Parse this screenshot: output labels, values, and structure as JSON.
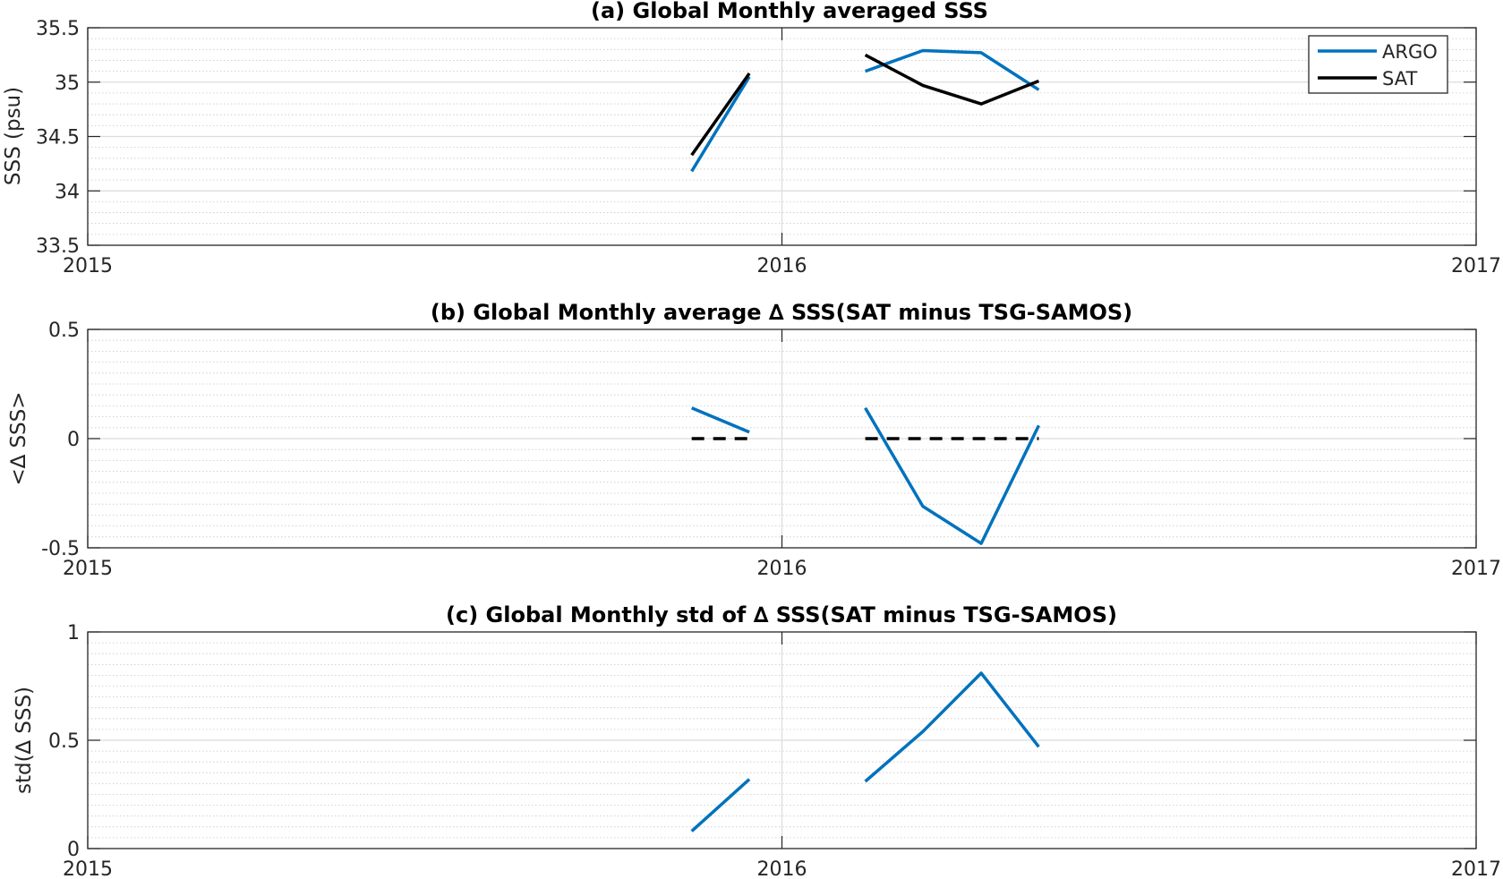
{
  "colors": {
    "argo": "#0072BD",
    "sat": "#000000"
  },
  "chart_data": [
    {
      "id": "a",
      "type": "line",
      "title": "(a) Global Monthly averaged SSS",
      "ylabel": "SSS (psu)",
      "xlim": [
        2015,
        2017
      ],
      "ylim": [
        33.5,
        35.5
      ],
      "xticks": [
        "2015",
        "2016",
        "2017"
      ],
      "yticks": [
        "33.5",
        "34",
        "34.5",
        "35",
        "35.5"
      ],
      "ytick_values": [
        33.5,
        34,
        34.5,
        35,
        35.5
      ],
      "grid": "on",
      "legend": {
        "position": "top-right",
        "entries": [
          "ARGO",
          "SAT"
        ]
      },
      "series": [
        {
          "name": "ARGO",
          "color": "argo",
          "dash": false,
          "segments": [
            [
              [
                2015.87,
                34.18
              ],
              [
                2015.953,
                35.05
              ]
            ],
            [
              [
                2016.12,
                35.1
              ],
              [
                2016.203,
                35.29
              ],
              [
                2016.287,
                35.27
              ],
              [
                2016.37,
                34.93
              ]
            ]
          ]
        },
        {
          "name": "SAT",
          "color": "sat",
          "dash": false,
          "segments": [
            [
              [
                2015.87,
                34.33
              ],
              [
                2015.953,
                35.08
              ]
            ],
            [
              [
                2016.12,
                35.25
              ],
              [
                2016.203,
                34.97
              ],
              [
                2016.287,
                34.8
              ],
              [
                2016.37,
                35.01
              ]
            ]
          ]
        }
      ]
    },
    {
      "id": "b",
      "type": "line",
      "title": "(b) Global Monthly average ∆ SSS(SAT minus TSG-SAMOS)",
      "ylabel": "<∆ SSS>",
      "xlim": [
        2015,
        2017
      ],
      "ylim": [
        -0.5,
        0.5
      ],
      "xticks": [
        "2015",
        "2016",
        "2017"
      ],
      "yticks": [
        "-0.5",
        "0",
        "0.5"
      ],
      "ytick_values": [
        -0.5,
        0,
        0.5
      ],
      "grid": "on",
      "series": [
        {
          "color": "argo",
          "dash": false,
          "segments": [
            [
              [
                2015.87,
                0.14
              ],
              [
                2015.953,
                0.03
              ]
            ],
            [
              [
                2016.12,
                0.14
              ],
              [
                2016.203,
                -0.31
              ],
              [
                2016.287,
                -0.48
              ],
              [
                2016.37,
                0.06
              ]
            ]
          ]
        },
        {
          "color": "sat",
          "dash": true,
          "segments": [
            [
              [
                2015.87,
                0.0
              ],
              [
                2015.953,
                0.0
              ]
            ],
            [
              [
                2016.12,
                0.0
              ],
              [
                2016.37,
                0.0
              ]
            ]
          ]
        }
      ]
    },
    {
      "id": "c",
      "type": "line",
      "title": "(c) Global Monthly std of ∆ SSS(SAT minus TSG-SAMOS)",
      "ylabel": "std(∆ SSS)",
      "xlim": [
        2015,
        2017
      ],
      "ylim": [
        0,
        1
      ],
      "xticks": [
        "2015",
        "2016",
        "2017"
      ],
      "yticks": [
        "0",
        "0.5",
        "1"
      ],
      "ytick_values": [
        0,
        0.5,
        1
      ],
      "grid": "on",
      "series": [
        {
          "color": "argo",
          "dash": false,
          "segments": [
            [
              [
                2015.87,
                0.08
              ],
              [
                2015.953,
                0.32
              ]
            ],
            [
              [
                2016.12,
                0.31
              ],
              [
                2016.203,
                0.54
              ],
              [
                2016.287,
                0.81
              ],
              [
                2016.37,
                0.47
              ]
            ]
          ]
        }
      ]
    }
  ]
}
